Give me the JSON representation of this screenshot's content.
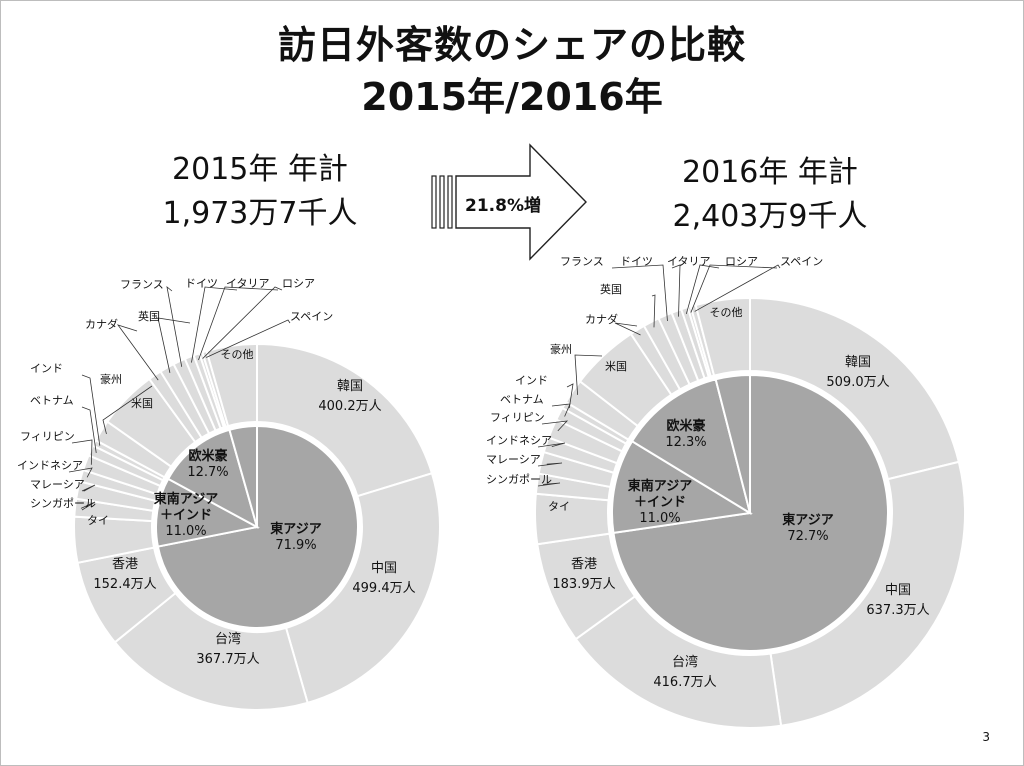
{
  "title_line1": "訪日外客数のシェアの比較",
  "title_line2": "2015年/2016年",
  "arrow": {
    "label": "21.8%増"
  },
  "page_number": "3",
  "chart_data": [
    {
      "type": "pie",
      "subtype": "nested-donut",
      "year_label": "2015年 年計",
      "total_label": "1,973万7千人",
      "inner_ring": [
        {
          "name": "東アジア",
          "percent_label": "71.9%",
          "value": 71.9
        },
        {
          "name": "東南アジア\n＋インド",
          "percent_label": "11.0%",
          "value": 11.0
        },
        {
          "name": "欧米豪",
          "percent_label": "12.7%",
          "value": 12.7
        },
        {
          "name": "その他",
          "percent_label": "",
          "value": 4.4
        }
      ],
      "outer_ring": [
        {
          "name": "韓国",
          "value_label": "400.2万人",
          "value": 400.2
        },
        {
          "name": "中国",
          "value_label": "499.4万人",
          "value": 499.4
        },
        {
          "name": "台湾",
          "value_label": "367.7万人",
          "value": 367.7
        },
        {
          "name": "香港",
          "value_label": "152.4万人",
          "value": 152.4
        },
        {
          "name": "タイ",
          "value_label": "",
          "value": 79.7
        },
        {
          "name": "シンガポール",
          "value_label": "",
          "value": 30.9
        },
        {
          "name": "マレーシア",
          "value_label": "",
          "value": 30.5
        },
        {
          "name": "インドネシア",
          "value_label": "",
          "value": 20.5
        },
        {
          "name": "フィリピン",
          "value_label": "",
          "value": 26.8
        },
        {
          "name": "ベトナム",
          "value_label": "",
          "value": 18.5
        },
        {
          "name": "インド",
          "value_label": "",
          "value": 10.3
        },
        {
          "name": "豪州",
          "value_label": "",
          "value": 37.6
        },
        {
          "name": "米国",
          "value_label": "",
          "value": 103.3
        },
        {
          "name": "カナダ",
          "value_label": "",
          "value": 23.1
        },
        {
          "name": "英国",
          "value_label": "",
          "value": 25.8
        },
        {
          "name": "フランス",
          "value_label": "",
          "value": 21.4
        },
        {
          "name": "ドイツ",
          "value_label": "",
          "value": 16.3
        },
        {
          "name": "イタリア",
          "value_label": "",
          "value": 10.3
        },
        {
          "name": "ロシア",
          "value_label": "",
          "value": 5.4
        },
        {
          "name": "スペイン",
          "value_label": "",
          "value": 7.7
        },
        {
          "name": "その他",
          "value_label": "",
          "value": 87.7
        }
      ]
    },
    {
      "type": "pie",
      "subtype": "nested-donut",
      "year_label": "2016年 年計",
      "total_label": "2,403万9千人",
      "inner_ring": [
        {
          "name": "東アジア",
          "percent_label": "72.7%",
          "value": 72.7
        },
        {
          "name": "東南アジア\n＋インド",
          "percent_label": "11.0%",
          "value": 11.0
        },
        {
          "name": "欧米豪",
          "percent_label": "12.3%",
          "value": 12.3
        },
        {
          "name": "その他",
          "percent_label": "",
          "value": 4.0
        }
      ],
      "outer_ring": [
        {
          "name": "韓国",
          "value_label": "509.0万人",
          "value": 509.0
        },
        {
          "name": "中国",
          "value_label": "637.3万人",
          "value": 637.3
        },
        {
          "name": "台湾",
          "value_label": "416.7万人",
          "value": 416.7
        },
        {
          "name": "香港",
          "value_label": "183.9万人",
          "value": 183.9
        },
        {
          "name": "タイ",
          "value_label": "",
          "value": 90.2
        },
        {
          "name": "シンガポール",
          "value_label": "",
          "value": 36.2
        },
        {
          "name": "マレーシア",
          "value_label": "",
          "value": 39.4
        },
        {
          "name": "インドネシア",
          "value_label": "",
          "value": 27.1
        },
        {
          "name": "フィリピン",
          "value_label": "",
          "value": 34.8
        },
        {
          "name": "ベトナム",
          "value_label": "",
          "value": 23.4
        },
        {
          "name": "インド",
          "value_label": "",
          "value": 12.3
        },
        {
          "name": "豪州",
          "value_label": "",
          "value": 44.5
        },
        {
          "name": "米国",
          "value_label": "",
          "value": 124.3
        },
        {
          "name": "カナダ",
          "value_label": "",
          "value": 27.3
        },
        {
          "name": "英国",
          "value_label": "",
          "value": 29.2
        },
        {
          "name": "フランス",
          "value_label": "",
          "value": 25.3
        },
        {
          "name": "ドイツ",
          "value_label": "",
          "value": 18.3
        },
        {
          "name": "イタリア",
          "value_label": "",
          "value": 11.9
        },
        {
          "name": "ロシア",
          "value_label": "",
          "value": 5.5
        },
        {
          "name": "スペイン",
          "value_label": "",
          "value": 9.2
        },
        {
          "name": "その他",
          "value_label": "",
          "value": 97.8
        }
      ]
    }
  ]
}
